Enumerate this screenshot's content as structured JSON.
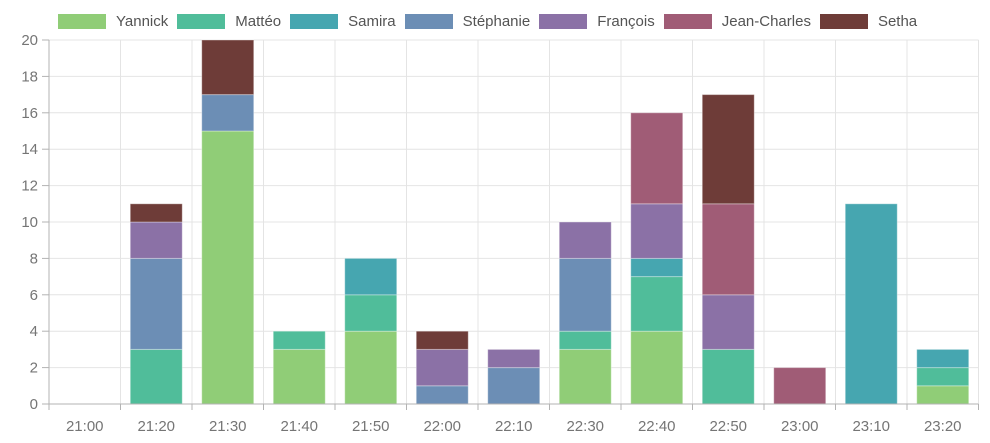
{
  "chart_data": {
    "type": "bar",
    "stacked": true,
    "title": "",
    "xlabel": "",
    "ylabel": "",
    "legend_position": "top",
    "grid": true,
    "ylim": [
      0,
      20
    ],
    "ytick_step": 2,
    "yticks": [
      0,
      2,
      4,
      6,
      8,
      10,
      12,
      14,
      16,
      18,
      20
    ],
    "categories": [
      "21:00",
      "21:20",
      "21:30",
      "21:40",
      "21:50",
      "22:00",
      "22:10",
      "22:30",
      "22:40",
      "22:50",
      "23:00",
      "23:10",
      "23:20"
    ],
    "series": [
      {
        "name": "Yannick",
        "color": "#90CD77",
        "values": [
          0,
          0,
          15,
          3,
          4,
          0,
          0,
          3,
          4,
          0,
          0,
          0,
          1
        ]
      },
      {
        "name": "Mattéo",
        "color": "#50BD9A",
        "values": [
          0,
          3,
          0,
          1,
          2,
          0,
          0,
          1,
          3,
          3,
          0,
          0,
          1
        ]
      },
      {
        "name": "Samira",
        "color": "#46A6B0",
        "values": [
          0,
          0,
          0,
          0,
          2,
          0,
          0,
          0,
          1,
          0,
          0,
          11,
          1
        ]
      },
      {
        "name": "Stéphanie",
        "color": "#6C8EB5",
        "values": [
          0,
          5,
          2,
          0,
          0,
          1,
          2,
          4,
          0,
          0,
          0,
          0,
          0
        ]
      },
      {
        "name": "François",
        "color": "#8B71A6",
        "values": [
          0,
          2,
          0,
          0,
          0,
          2,
          1,
          2,
          3,
          3,
          0,
          0,
          0
        ]
      },
      {
        "name": "Jean-Charles",
        "color": "#A05C76",
        "values": [
          0,
          0,
          0,
          0,
          0,
          0,
          0,
          0,
          5,
          5,
          2,
          0,
          0
        ]
      },
      {
        "name": "Setha",
        "color": "#6E3C38",
        "values": [
          0,
          1,
          3,
          0,
          0,
          1,
          0,
          0,
          0,
          6,
          0,
          0,
          0
        ]
      }
    ],
    "totals": [
      0,
      11,
      20,
      4,
      8,
      4,
      3,
      10,
      16,
      17,
      2,
      11,
      3
    ]
  },
  "colors": {
    "background": "#ffffff",
    "grid": "#e4e4e4",
    "axis": "#b3b3b3",
    "axis_text": "#757575",
    "legend_text": "#545454"
  }
}
